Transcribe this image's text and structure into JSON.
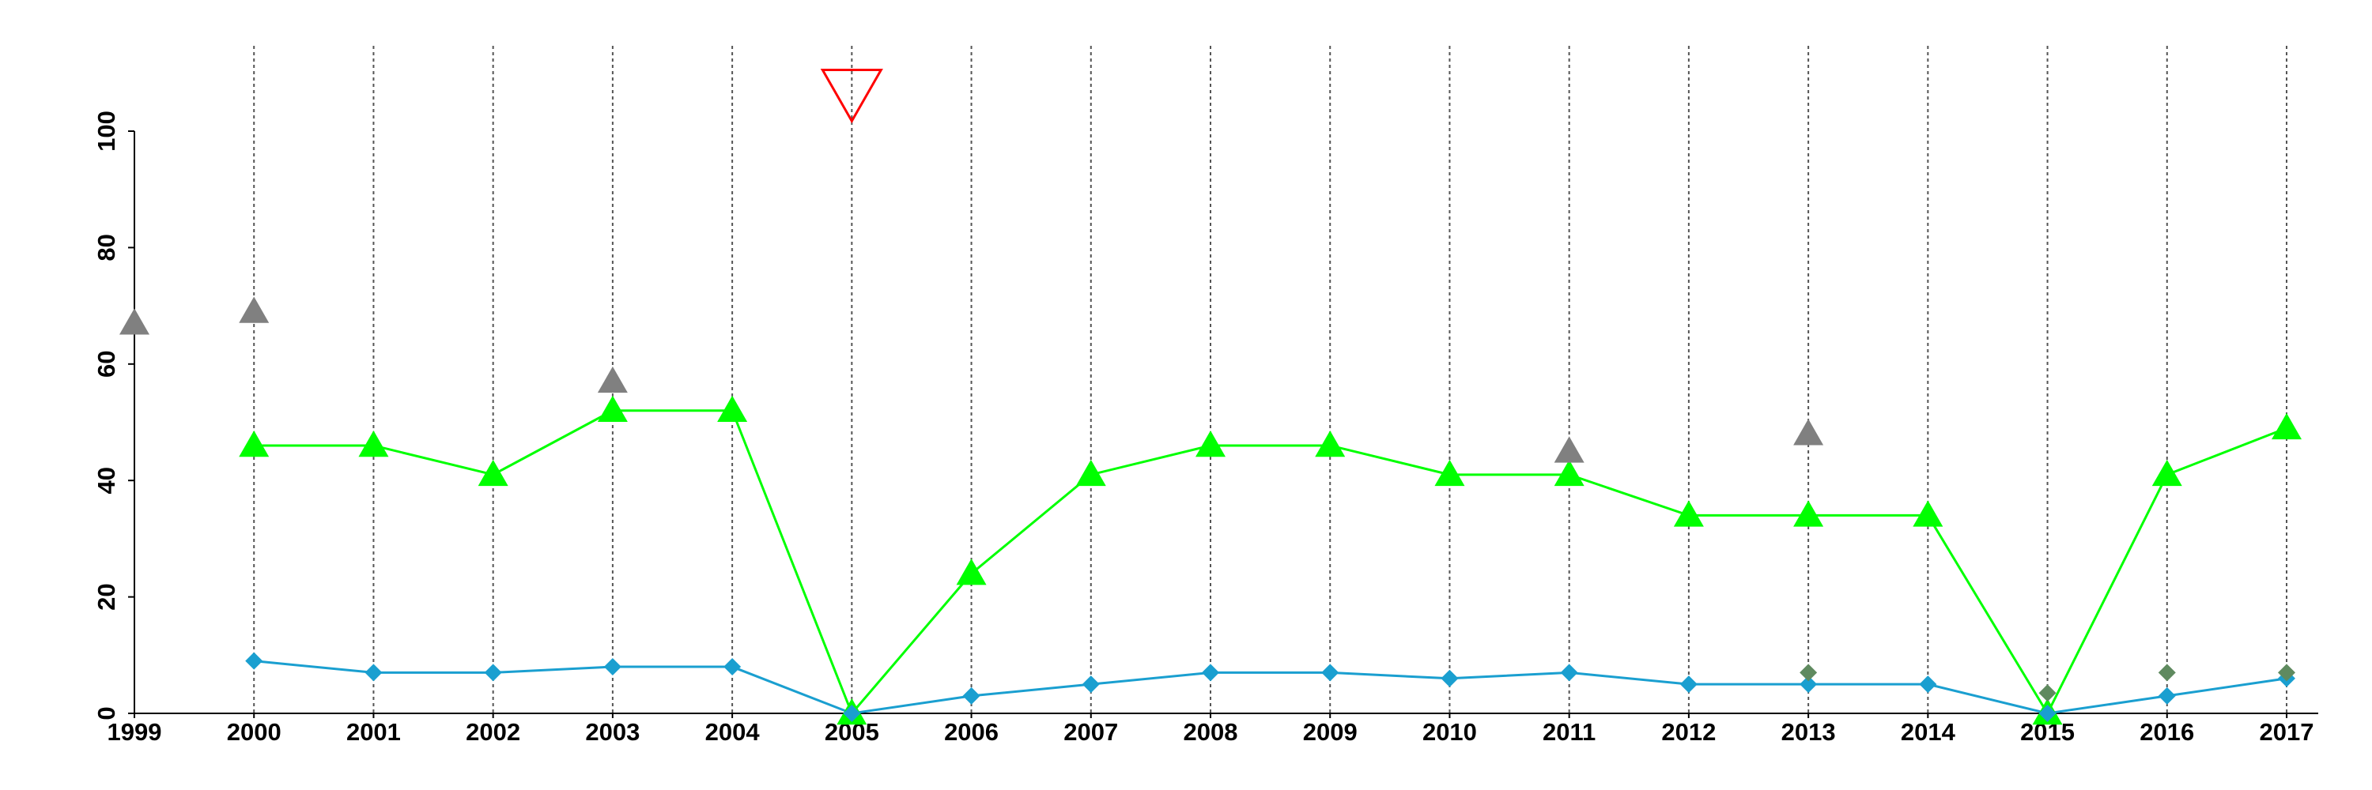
{
  "chart_data": {
    "type": "line",
    "x": [
      1999,
      2000,
      2001,
      2002,
      2003,
      2004,
      2005,
      2006,
      2007,
      2008,
      2009,
      2010,
      2011,
      2012,
      2013,
      2014,
      2015,
      2016,
      2017
    ],
    "xlim": [
      1999,
      2017
    ],
    "xticks": [
      1999,
      2000,
      2001,
      2002,
      2003,
      2004,
      2005,
      2006,
      2007,
      2008,
      2009,
      2010,
      2011,
      2012,
      2013,
      2014,
      2015,
      2016,
      2017
    ],
    "ylim": [
      0,
      100
    ],
    "yticks": [
      0,
      20,
      40,
      60,
      80,
      100
    ],
    "grid": "x-dashed",
    "series": [
      {
        "color": "#00ff00",
        "marker": "triangle",
        "line": true,
        "values": [
          null,
          46,
          46,
          41,
          52,
          52,
          0,
          24,
          41,
          46,
          46,
          41,
          41,
          34,
          34,
          34,
          0,
          41,
          49
        ]
      },
      {
        "color": "#1a9fd0",
        "marker": "diamond",
        "line": true,
        "values": [
          null,
          9,
          7,
          7,
          8,
          8,
          0,
          3,
          5,
          7,
          7,
          6,
          7,
          5,
          5,
          5,
          0,
          3,
          6
        ]
      },
      {
        "color": "#808080",
        "marker": "triangle",
        "line": false,
        "values": [
          67,
          69,
          null,
          null,
          57,
          null,
          null,
          null,
          null,
          null,
          null,
          null,
          45,
          null,
          48,
          null,
          null,
          null,
          null
        ]
      },
      {
        "color": "#5f8a5f",
        "marker": "diamond",
        "line": false,
        "values": [
          null,
          null,
          null,
          null,
          null,
          null,
          null,
          null,
          null,
          null,
          null,
          null,
          null,
          null,
          7,
          null,
          3.5,
          7,
          7
        ]
      },
      {
        "color": "#ff0000",
        "marker": "triangle-down-open",
        "line": false,
        "values": [
          null,
          null,
          null,
          null,
          null,
          null,
          106,
          null,
          null,
          null,
          null,
          null,
          null,
          null,
          null,
          null,
          null,
          null,
          null
        ]
      }
    ]
  }
}
